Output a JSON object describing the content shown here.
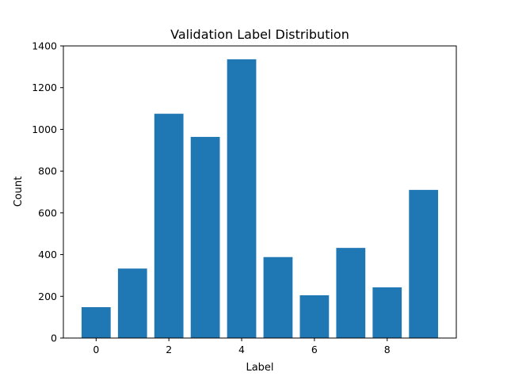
{
  "chart_data": {
    "type": "bar",
    "title": "Validation Label Distribution",
    "xlabel": "Label",
    "ylabel": "Count",
    "x": [
      0,
      1,
      2,
      3,
      4,
      5,
      6,
      7,
      8,
      9
    ],
    "values": [
      148,
      333,
      1075,
      964,
      1336,
      388,
      205,
      432,
      243,
      710
    ],
    "xlim": [
      -0.9,
      9.9
    ],
    "ylim": [
      0,
      1400
    ],
    "xticks": [
      0,
      2,
      4,
      6,
      8
    ],
    "yticks": [
      0,
      200,
      400,
      600,
      800,
      1000,
      1200,
      1400
    ],
    "bar_color": "#1f77b4",
    "grid": false,
    "legend": "none"
  }
}
